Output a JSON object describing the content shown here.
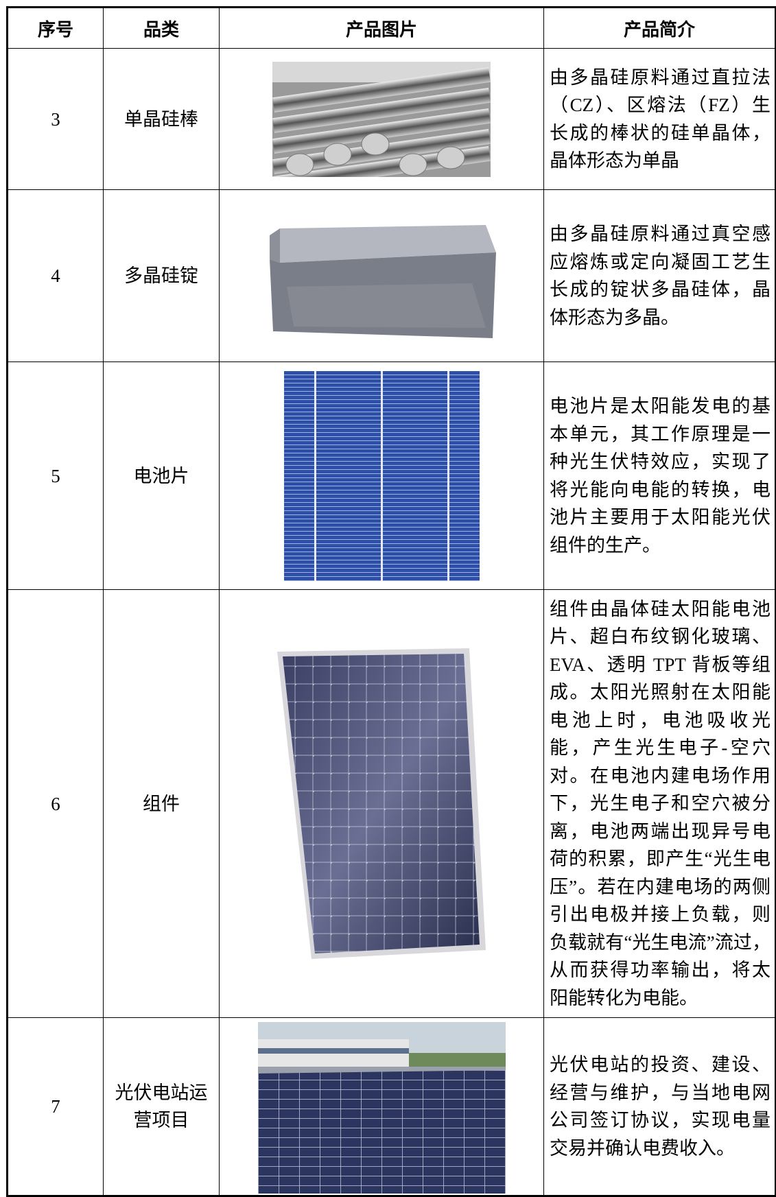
{
  "table": {
    "headers": [
      "序号",
      "品类",
      "产品图片",
      "产品简介"
    ],
    "rows": [
      [
        "3",
        "单晶硅棒",
        "由多晶硅原料通过直拉法（CZ）、区熔法（FZ）生长成的棒状的硅单晶体，晶体形态为单晶"
      ],
      [
        "4",
        "多晶硅锭",
        "由多晶硅原料通过真空感应熔炼或定向凝固工艺生长成的锭状多晶硅体，晶体形态为多晶。"
      ],
      [
        "5",
        "电池片",
        "电池片是太阳能发电的基本单元，其工作原理是一种光生伏特效应，实现了将光能向电能的转换，电池片主要用于太阳能光伏组件的生产。"
      ],
      [
        "6",
        "组件",
        "组件由晶体硅太阳能电池片、超白布纹钢化玻璃、EVA、透明 TPT 背板等组成。太阳光照射在太阳能电池上时，电池吸收光能，产生光生电子-空穴对。在电池内建电场作用下，光生电子和空穴被分离，电池两端出现异号电荷的积累，即产生“光生电压”。若在内建电场的两侧引出电极并接上负载，则负载就有“光生电流”流过，从而获得功率输出，将太阳能转化为电能。"
      ],
      [
        "7",
        "光伏电站运营项目",
        "光伏电站的投资、建设、经营与维护，与当地电网公司签订协议，实现电量交易并确认电费收入。"
      ]
    ]
  }
}
